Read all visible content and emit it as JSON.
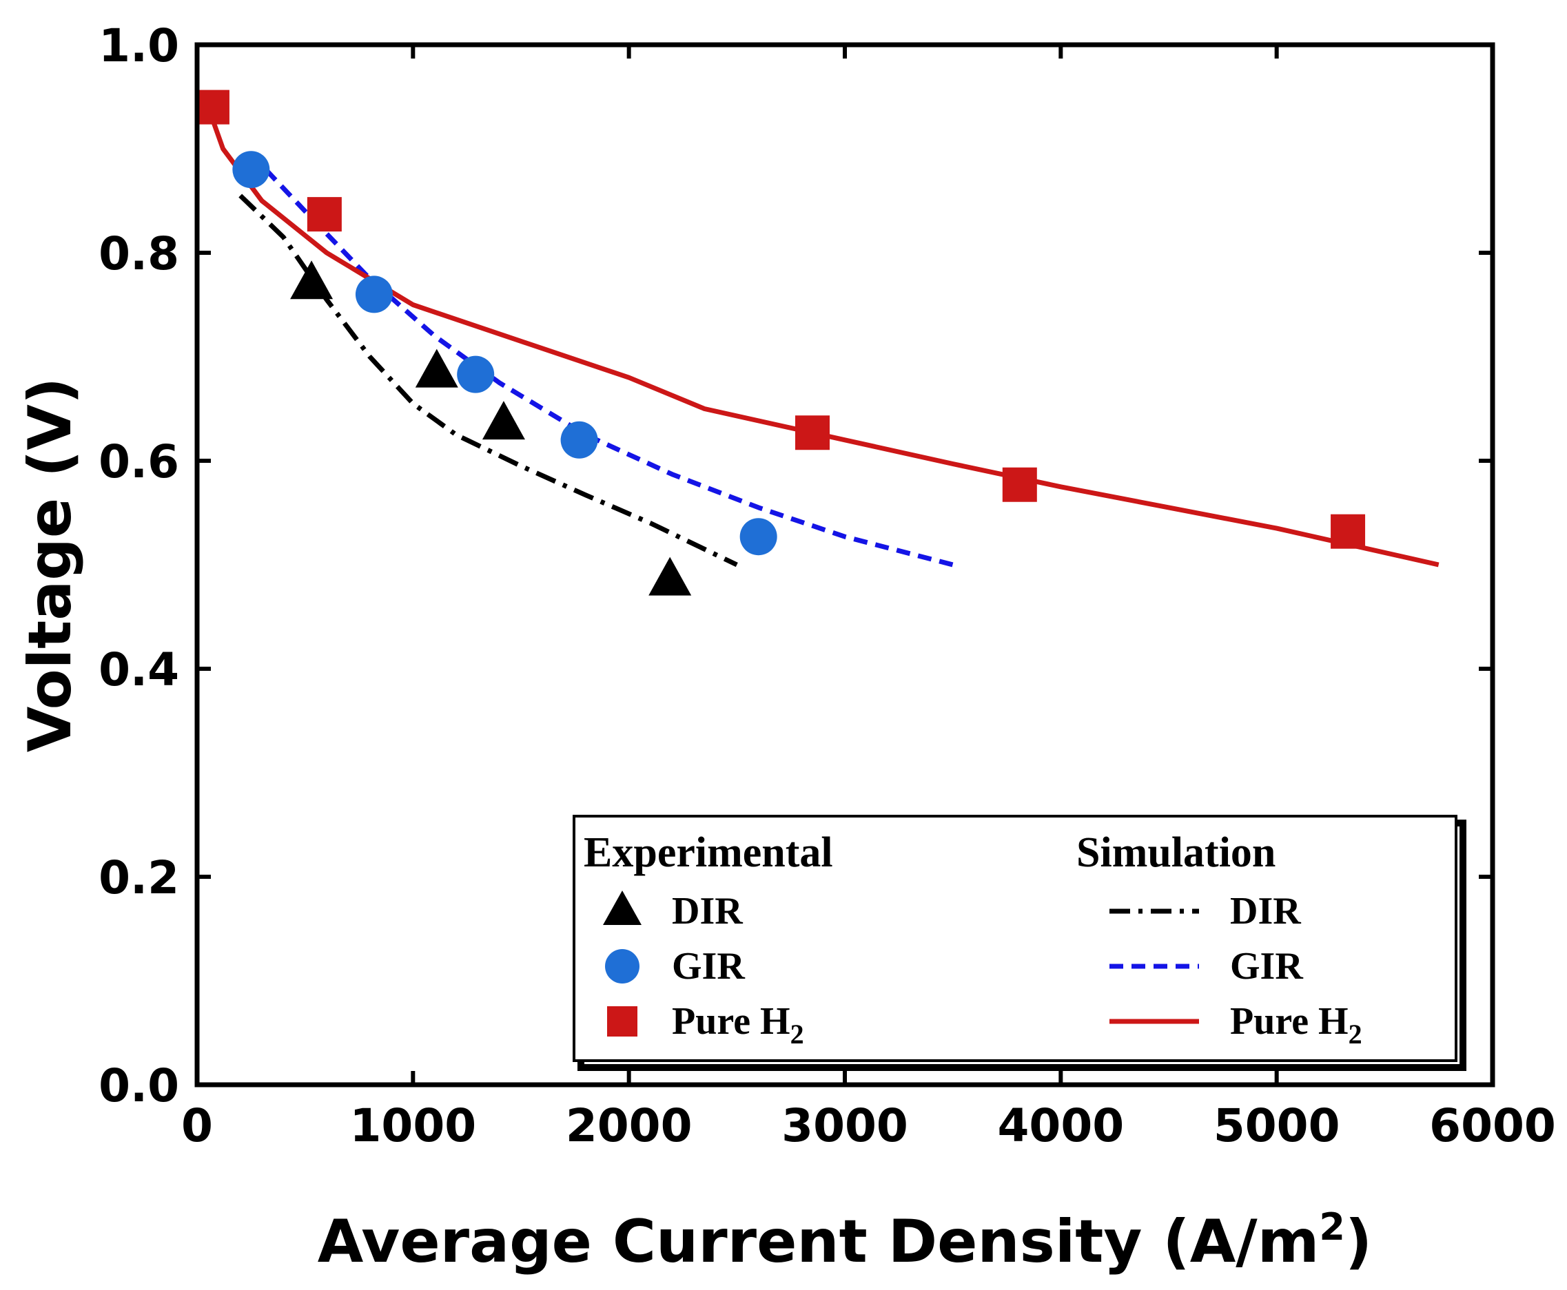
{
  "chart_data": {
    "type": "scatter",
    "xlabel": "Average Current Density (A/m",
    "xlabel_sup": "2",
    "xlabel_end": ")",
    "ylabel": "Voltage (V)",
    "xlim": [
      0,
      6000
    ],
    "ylim": [
      0.0,
      1.0
    ],
    "xticks": [
      0,
      1000,
      2000,
      3000,
      4000,
      5000,
      6000
    ],
    "yticks": [
      0.0,
      0.2,
      0.4,
      0.6,
      0.8,
      1.0
    ],
    "xtick_labels": [
      "0",
      "1000",
      "2000",
      "3000",
      "4000",
      "5000",
      "6000"
    ],
    "ytick_labels": [
      "0.0",
      "0.2",
      "0.4",
      "0.6",
      "0.8",
      "1.0"
    ],
    "grid": false,
    "experimental": [
      {
        "name": "DIR",
        "marker": "triangle",
        "color": "#000000",
        "x": [
          530,
          1110,
          1420,
          2190
        ],
        "y": [
          0.77,
          0.685,
          0.635,
          0.485
        ]
      },
      {
        "name": "GIR",
        "marker": "circle",
        "color": "#1f6fd6",
        "x": [
          250,
          820,
          1290,
          1770,
          2600
        ],
        "y": [
          0.88,
          0.76,
          0.683,
          0.62,
          0.527
        ]
      },
      {
        "name": "Pure H2",
        "marker": "square",
        "color": "#cc1717",
        "x": [
          70,
          590,
          2850,
          3810,
          5330
        ],
        "y": [
          0.94,
          0.837,
          0.627,
          0.577,
          0.532
        ]
      }
    ],
    "simulation": [
      {
        "name": "DIR",
        "style": "dash-dot",
        "color": "#000000",
        "x": [
          200,
          400,
          600,
          800,
          1000,
          1200,
          1500,
          1800,
          2100,
          2500
        ],
        "y": [
          0.855,
          0.815,
          0.755,
          0.7,
          0.655,
          0.625,
          0.595,
          0.567,
          0.54,
          0.5
        ]
      },
      {
        "name": "GIR",
        "style": "dashed",
        "color": "#1414e6",
        "x": [
          250,
          500,
          800,
          1100,
          1400,
          1800,
          2200,
          2600,
          3000,
          3500
        ],
        "y": [
          0.895,
          0.84,
          0.775,
          0.72,
          0.675,
          0.625,
          0.587,
          0.555,
          0.527,
          0.5
        ]
      },
      {
        "name": "Pure H2",
        "style": "solid",
        "color": "#cc1717",
        "x": [
          60,
          120,
          300,
          600,
          1000,
          1500,
          2000,
          2350,
          3000,
          3500,
          4000,
          4500,
          5000,
          5750
        ],
        "y": [
          0.935,
          0.9,
          0.85,
          0.8,
          0.75,
          0.715,
          0.68,
          0.65,
          0.62,
          0.597,
          0.575,
          0.555,
          0.535,
          0.5
        ]
      }
    ],
    "legend": {
      "position": "bottom-right",
      "experimental_title": "Experimental",
      "simulation_title": "Simulation",
      "entries": [
        {
          "label": "DIR",
          "sub": ""
        },
        {
          "label": "GIR",
          "sub": ""
        },
        {
          "label": "Pure H",
          "sub": "2"
        }
      ]
    }
  }
}
